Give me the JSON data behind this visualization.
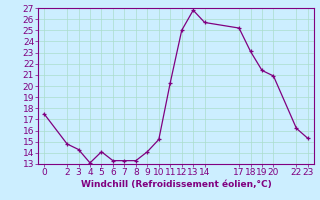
{
  "x": [
    0,
    2,
    3,
    4,
    5,
    6,
    7,
    8,
    9,
    10,
    11,
    12,
    13,
    14,
    17,
    18,
    19,
    20,
    22,
    23
  ],
  "y": [
    17.5,
    14.8,
    14.3,
    13.1,
    14.1,
    13.3,
    13.3,
    13.3,
    14.1,
    15.2,
    20.3,
    25.0,
    26.8,
    25.7,
    25.2,
    23.1,
    21.4,
    20.9,
    16.2,
    15.3
  ],
  "xlim": [
    -0.5,
    23.5
  ],
  "ylim": [
    13,
    27
  ],
  "yticks": [
    13,
    14,
    15,
    16,
    17,
    18,
    19,
    20,
    21,
    22,
    23,
    24,
    25,
    26,
    27
  ],
  "xticks": [
    0,
    2,
    3,
    4,
    5,
    6,
    7,
    8,
    9,
    10,
    11,
    12,
    13,
    14,
    17,
    18,
    19,
    20,
    22,
    23
  ],
  "xlabel": "Windchill (Refroidissement éolien,°C)",
  "line_color": "#800080",
  "marker": "+",
  "bg_color": "#cceeff",
  "grid_color": "#aaddcc",
  "tick_color": "#800080",
  "label_color": "#800080",
  "font_size": 6.5
}
